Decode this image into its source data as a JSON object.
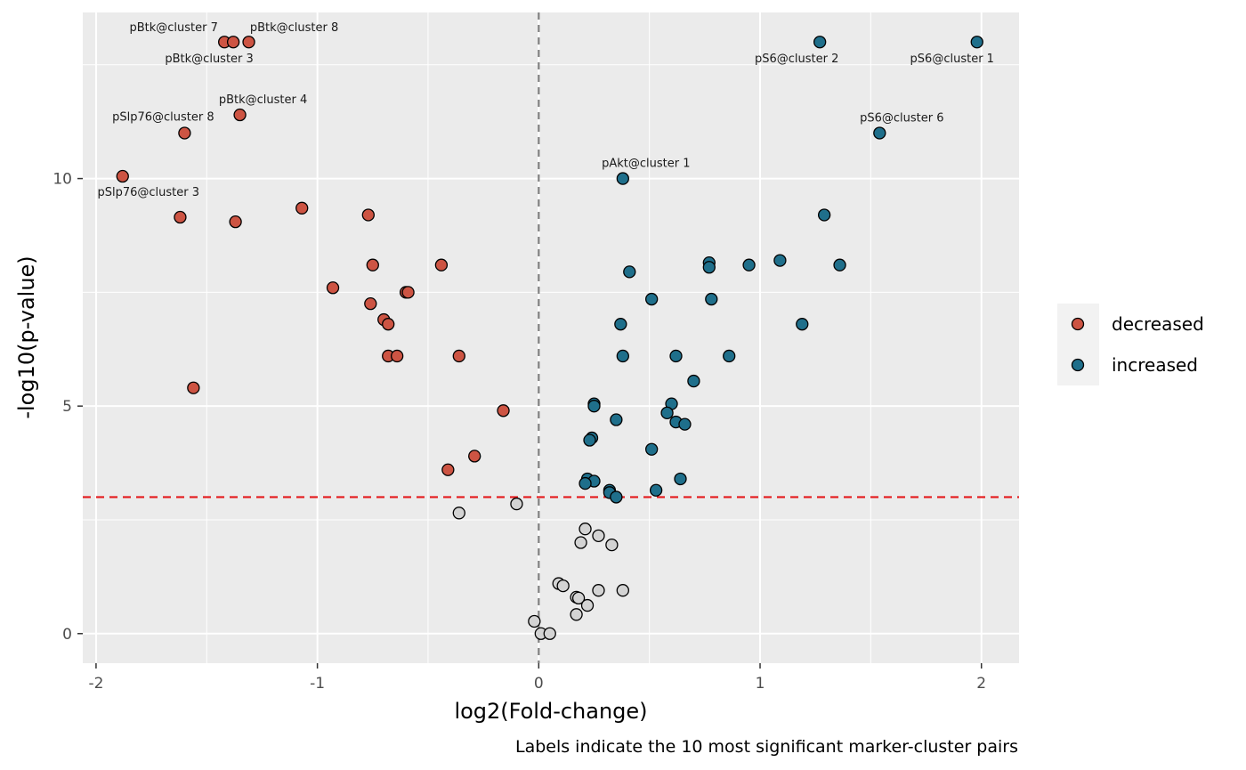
{
  "chart_data": {
    "type": "scatter",
    "title": "",
    "xlabel": "log2(Fold-change)",
    "ylabel": "-log10(p-value)",
    "caption": "Labels indicate the 10 most significant marker-cluster pairs",
    "xlim": [
      -2.06,
      2.17
    ],
    "ylim": [
      -0.65,
      13.65
    ],
    "x_ticks": [
      -2,
      -1,
      0,
      1,
      2
    ],
    "x_tick_labels": [
      "-2",
      "-1",
      "0",
      "1",
      "2"
    ],
    "y_ticks": [
      0,
      5,
      10
    ],
    "y_tick_labels": [
      "0",
      "5",
      "10"
    ],
    "grid": true,
    "background": "#ebebeb",
    "vline_x": 0,
    "hline_y": 3,
    "hline_color": "#e41a1c",
    "legend": {
      "position": "right",
      "entries": [
        {
          "label": "decreased",
          "color": "#cd5443"
        },
        {
          "label": "increased",
          "color": "#1f6f8b"
        }
      ]
    },
    "series": [
      {
        "name": "decreased",
        "color": "#cd5443",
        "points": [
          {
            "x": -1.42,
            "y": 13.0,
            "label": "pBtk@cluster 7"
          },
          {
            "x": -1.38,
            "y": 13.0,
            "label": "pBtk@cluster 3"
          },
          {
            "x": -1.31,
            "y": 13.0,
            "label": "pBtk@cluster 8"
          },
          {
            "x": -1.35,
            "y": 11.4,
            "label": "pBtk@cluster 4"
          },
          {
            "x": -1.6,
            "y": 11.0,
            "label": "pSlp76@cluster 8"
          },
          {
            "x": -1.88,
            "y": 10.05,
            "label": "pSlp76@cluster 3"
          },
          {
            "x": -1.62,
            "y": 9.15
          },
          {
            "x": -1.37,
            "y": 9.05
          },
          {
            "x": -1.07,
            "y": 9.35
          },
          {
            "x": -0.77,
            "y": 9.2
          },
          {
            "x": -0.93,
            "y": 7.6
          },
          {
            "x": -0.75,
            "y": 8.1
          },
          {
            "x": -0.44,
            "y": 8.1
          },
          {
            "x": -0.6,
            "y": 7.5
          },
          {
            "x": -0.59,
            "y": 7.5
          },
          {
            "x": -0.76,
            "y": 7.25
          },
          {
            "x": -0.7,
            "y": 6.9
          },
          {
            "x": -0.68,
            "y": 6.8
          },
          {
            "x": -0.68,
            "y": 6.1
          },
          {
            "x": -0.64,
            "y": 6.1
          },
          {
            "x": -0.36,
            "y": 6.1
          },
          {
            "x": -1.56,
            "y": 5.4
          },
          {
            "x": -0.16,
            "y": 4.9
          },
          {
            "x": -0.29,
            "y": 3.9
          },
          {
            "x": -0.41,
            "y": 3.6
          }
        ]
      },
      {
        "name": "increased",
        "color": "#1f6f8b",
        "points": [
          {
            "x": 1.27,
            "y": 13.0,
            "label": "pS6@cluster 2"
          },
          {
            "x": 1.98,
            "y": 13.0,
            "label": "pS6@cluster 1"
          },
          {
            "x": 1.54,
            "y": 11.0,
            "label": "pS6@cluster 6"
          },
          {
            "x": 0.38,
            "y": 10.0,
            "label": "pAkt@cluster 1"
          },
          {
            "x": 1.29,
            "y": 9.2
          },
          {
            "x": 1.09,
            "y": 8.2
          },
          {
            "x": 0.77,
            "y": 8.15
          },
          {
            "x": 0.77,
            "y": 8.05
          },
          {
            "x": 0.95,
            "y": 8.1
          },
          {
            "x": 1.36,
            "y": 8.1
          },
          {
            "x": 0.41,
            "y": 7.95
          },
          {
            "x": 0.51,
            "y": 7.35
          },
          {
            "x": 0.78,
            "y": 7.35
          },
          {
            "x": 0.37,
            "y": 6.8
          },
          {
            "x": 1.19,
            "y": 6.8
          },
          {
            "x": 0.38,
            "y": 6.1
          },
          {
            "x": 0.62,
            "y": 6.1
          },
          {
            "x": 0.86,
            "y": 6.1
          },
          {
            "x": 0.7,
            "y": 5.55
          },
          {
            "x": 0.25,
            "y": 5.05
          },
          {
            "x": 0.25,
            "y": 5.0
          },
          {
            "x": 0.6,
            "y": 5.05
          },
          {
            "x": 0.58,
            "y": 4.85
          },
          {
            "x": 0.35,
            "y": 4.7
          },
          {
            "x": 0.62,
            "y": 4.65
          },
          {
            "x": 0.66,
            "y": 4.6
          },
          {
            "x": 0.24,
            "y": 4.3
          },
          {
            "x": 0.23,
            "y": 4.25
          },
          {
            "x": 0.51,
            "y": 4.05
          },
          {
            "x": 0.22,
            "y": 3.4
          },
          {
            "x": 0.25,
            "y": 3.35
          },
          {
            "x": 0.21,
            "y": 3.3
          },
          {
            "x": 0.64,
            "y": 3.4
          },
          {
            "x": 0.32,
            "y": 3.15
          },
          {
            "x": 0.53,
            "y": 3.15
          },
          {
            "x": 0.32,
            "y": 3.1
          },
          {
            "x": 0.35,
            "y": 3.0
          }
        ]
      },
      {
        "name": "",
        "color": "#d3d3d3",
        "points": [
          {
            "x": -0.36,
            "y": 2.65
          },
          {
            "x": -0.1,
            "y": 2.85
          },
          {
            "x": 0.21,
            "y": 2.3
          },
          {
            "x": 0.27,
            "y": 2.15
          },
          {
            "x": 0.19,
            "y": 2.0
          },
          {
            "x": 0.33,
            "y": 1.95
          },
          {
            "x": 0.09,
            "y": 1.1
          },
          {
            "x": 0.11,
            "y": 1.05
          },
          {
            "x": 0.27,
            "y": 0.95
          },
          {
            "x": 0.38,
            "y": 0.95
          },
          {
            "x": 0.17,
            "y": 0.8
          },
          {
            "x": 0.18,
            "y": 0.78
          },
          {
            "x": 0.22,
            "y": 0.62
          },
          {
            "x": 0.17,
            "y": 0.42
          },
          {
            "x": -0.02,
            "y": 0.27
          },
          {
            "x": 0.01,
            "y": 0.0
          },
          {
            "x": 0.05,
            "y": 0.0
          }
        ]
      }
    ]
  }
}
